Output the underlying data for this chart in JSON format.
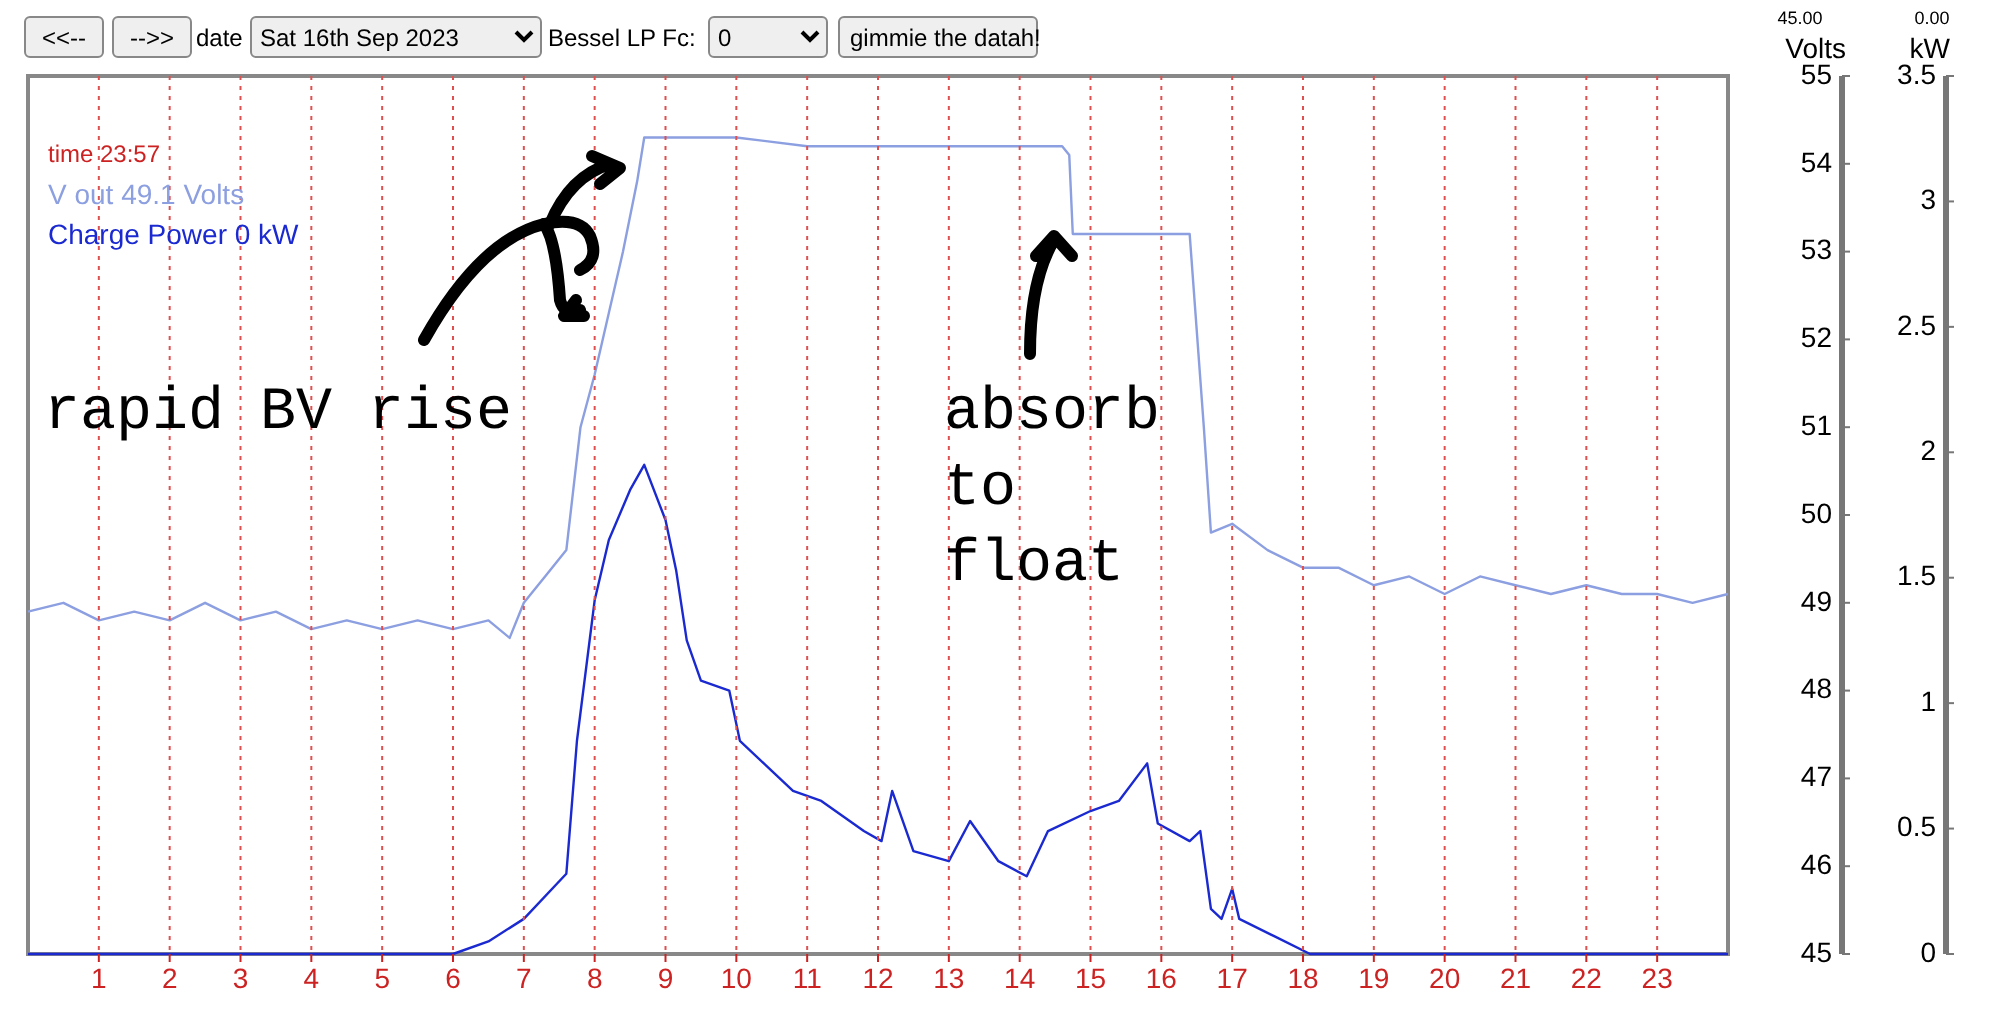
{
  "chart_data": {
    "type": "line",
    "xlim": [
      0,
      24
    ],
    "xticks": [
      1,
      2,
      3,
      4,
      5,
      6,
      7,
      8,
      9,
      10,
      11,
      12,
      13,
      14,
      15,
      16,
      17,
      18,
      19,
      20,
      21,
      22,
      23
    ],
    "ylabel": "Volts",
    "y2label": "kW",
    "ylim": [
      45,
      55
    ],
    "yticks": [
      45,
      46,
      47,
      48,
      49,
      50,
      51,
      52,
      53,
      54,
      55
    ],
    "y2lim": [
      0,
      3.5
    ],
    "y2ticks": [
      0,
      0.5,
      1,
      1.5,
      2,
      2.5,
      3,
      3.5
    ],
    "grid": "x",
    "legend": "top left",
    "marker": "none",
    "line_style": "solid",
    "annotations": [
      "<<--",
      "-->>",
      "date",
      "Sat 16th Sep 2023",
      "Bessel LP Fc:",
      "0",
      "gimmie the datah!",
      "time 23:57",
      "rapid BV rise",
      "absorb\nto\nfloat",
      "45.00",
      "0.00"
    ],
    "series": [
      {
        "name": "V out 49.1 Volts",
        "color": "#8c9fe0",
        "x": [
          0,
          0.5,
          1,
          1.5,
          2,
          2.5,
          3,
          3.5,
          4,
          4.5,
          5,
          5.5,
          6,
          6.5,
          6.8,
          7.0,
          7.3,
          7.6,
          7.7,
          7.8,
          8.0,
          8.2,
          8.4,
          8.6,
          8.7,
          9,
          10,
          11,
          12,
          13,
          14,
          14.6,
          14.7,
          14.75,
          15,
          16,
          16.4,
          16.6,
          16.7,
          17,
          17.5,
          18,
          18.5,
          19,
          19.5,
          20,
          20.5,
          21,
          21.5,
          22,
          22.5,
          23,
          23.5,
          24
        ],
        "values": [
          48.9,
          49.0,
          48.8,
          48.9,
          48.8,
          49.0,
          48.8,
          48.9,
          48.7,
          48.8,
          48.7,
          48.8,
          48.7,
          48.8,
          48.6,
          49.0,
          49.3,
          49.6,
          50.3,
          51.0,
          51.6,
          52.3,
          53.0,
          53.8,
          54.3,
          54.3,
          54.3,
          54.2,
          54.2,
          54.2,
          54.2,
          54.2,
          54.1,
          53.2,
          53.2,
          53.2,
          53.2,
          51.0,
          49.8,
          49.9,
          49.6,
          49.4,
          49.4,
          49.2,
          49.3,
          49.1,
          49.3,
          49.2,
          49.1,
          49.2,
          49.1,
          49.1,
          49.0,
          49.1
        ]
      },
      {
        "name": "Charge Power 0 kW",
        "color": "#1a2ad0",
        "axis": "y2",
        "x": [
          0,
          6,
          6.5,
          7,
          7.6,
          7.75,
          8,
          8.2,
          8.5,
          8.7,
          9,
          9.15,
          9.3,
          9.5,
          9.9,
          10.05,
          10.5,
          10.8,
          11.2,
          11.8,
          12.05,
          12.2,
          12.5,
          13,
          13.3,
          13.7,
          14.1,
          14.4,
          15,
          15.4,
          15.8,
          15.95,
          16.4,
          16.55,
          16.7,
          16.85,
          17.0,
          17.1,
          17.6,
          18.1,
          24
        ],
        "values": [
          0,
          0,
          0.05,
          0.14,
          0.32,
          0.85,
          1.41,
          1.65,
          1.85,
          1.95,
          1.73,
          1.53,
          1.25,
          1.09,
          1.05,
          0.85,
          0.73,
          0.65,
          0.61,
          0.49,
          0.45,
          0.65,
          0.41,
          0.37,
          0.53,
          0.37,
          0.31,
          0.49,
          0.57,
          0.61,
          0.76,
          0.52,
          0.45,
          0.49,
          0.18,
          0.14,
          0.26,
          0.14,
          0.07,
          0,
          0
        ]
      }
    ]
  }
}
